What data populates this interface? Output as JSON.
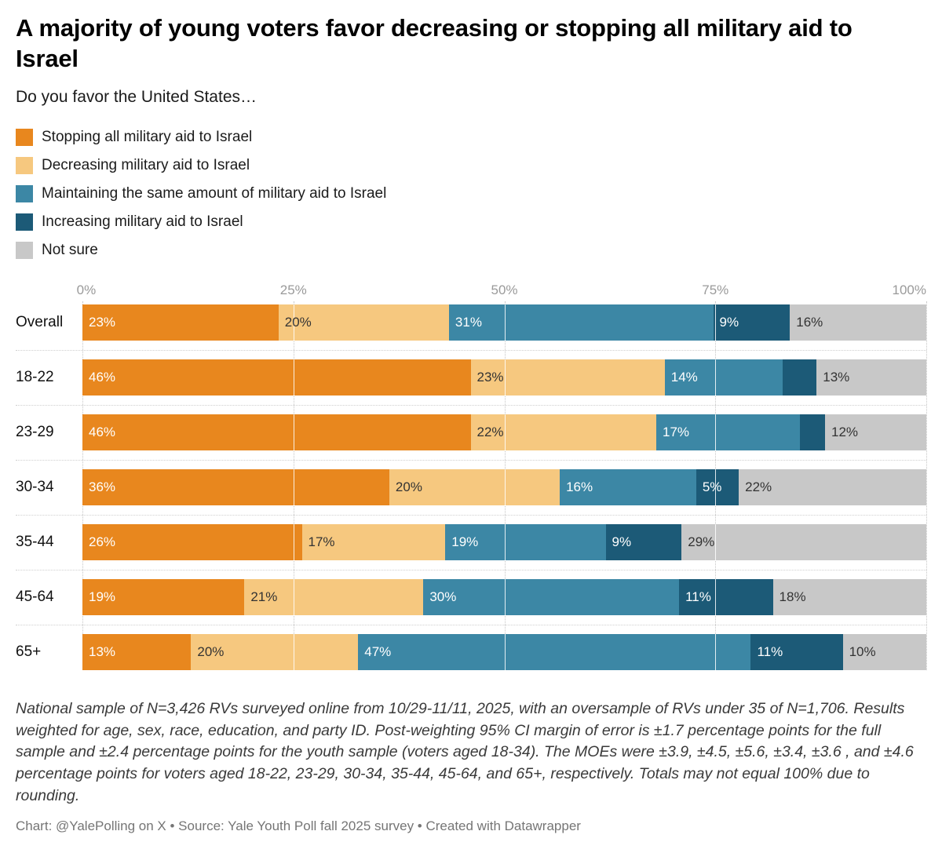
{
  "title": "A majority of young voters favor decreasing or stopping all military aid to Israel",
  "subtitle": "Do you favor the United States…",
  "legend": {
    "items": [
      {
        "label": "Stopping all military aid to Israel",
        "color": "#e8871e"
      },
      {
        "label": "Decreasing military aid to Israel",
        "color": "#f6c87f"
      },
      {
        "label": "Maintaining the same amount of military aid to Israel",
        "color": "#3c87a5"
      },
      {
        "label": "Increasing military aid to Israel",
        "color": "#1c5a77"
      },
      {
        "label": "Not sure",
        "color": "#c8c8c8"
      }
    ]
  },
  "chart_data": {
    "type": "bar",
    "stacked": true,
    "orientation": "horizontal",
    "unit": "%",
    "xlim": [
      0,
      100
    ],
    "grid": "dotted-vertical",
    "legend_position": "top-left",
    "axis_ticks": [
      {
        "label": "0%",
        "pos": 0
      },
      {
        "label": "25%",
        "pos": 25
      },
      {
        "label": "50%",
        "pos": 50
      },
      {
        "label": "75%",
        "pos": 75
      },
      {
        "label": "100%",
        "pos": 100
      }
    ],
    "categories": [
      "Overall",
      "18-22",
      "23-29",
      "30-34",
      "35-44",
      "45-64",
      "65+"
    ],
    "series": [
      {
        "name": "Stopping all military aid to Israel",
        "color": "#e8871e",
        "text_color": "#ffffff",
        "values": [
          23,
          46,
          46,
          36,
          26,
          19,
          13
        ],
        "labels": [
          "23%",
          "46%",
          "46%",
          "36%",
          "26%",
          "19%",
          "13%"
        ]
      },
      {
        "name": "Decreasing military aid to Israel",
        "color": "#f6c87f",
        "text_color": "#333333",
        "values": [
          20,
          23,
          22,
          20,
          17,
          21,
          20
        ],
        "labels": [
          "20%",
          "23%",
          "22%",
          "20%",
          "17%",
          "21%",
          "20%"
        ]
      },
      {
        "name": "Maintaining the same amount of military aid to Israel",
        "color": "#3c87a5",
        "text_color": "#ffffff",
        "values": [
          31,
          14,
          17,
          16,
          19,
          30,
          47
        ],
        "labels": [
          "31%",
          "14%",
          "17%",
          "16%",
          "19%",
          "30%",
          "47%"
        ]
      },
      {
        "name": "Increasing military aid to Israel",
        "color": "#1c5a77",
        "text_color": "#ffffff",
        "values": [
          9,
          4,
          3,
          5,
          9,
          11,
          11
        ],
        "labels": [
          "9%",
          "",
          "",
          "5%",
          "9%",
          "11%",
          "11%"
        ]
      },
      {
        "name": "Not sure",
        "color": "#c8c8c8",
        "text_color": "#333333",
        "values": [
          16,
          13,
          12,
          22,
          29,
          18,
          10
        ],
        "labels": [
          "16%",
          "13%",
          "12%",
          "22%",
          "29%",
          "18%",
          "10%"
        ]
      }
    ]
  },
  "footnote": "National sample of N=3,426 RVs surveyed online from 10/29-11/11, 2025, with an oversample of RVs under 35 of N=1,706. Results weighted for age, sex, race, education, and party ID. Post-weighting 95% CI margin of error is ±1.7 percentage points for the full sample and ±2.4 percentage points for the youth sample (voters aged 18-34). The MOEs were ±3.9, ±4.5, ±5.6, ±3.4, ±3.6 , and ±4.6 percentage points for voters aged 18-22, 23-29, 30-34, 35-44, 45-64, and 65+, respectively. Totals may not equal 100% due to rounding.",
  "credit": "Chart: @YalePolling on X • Source: Yale Youth Poll fall 2025 survey • Created with Datawrapper"
}
